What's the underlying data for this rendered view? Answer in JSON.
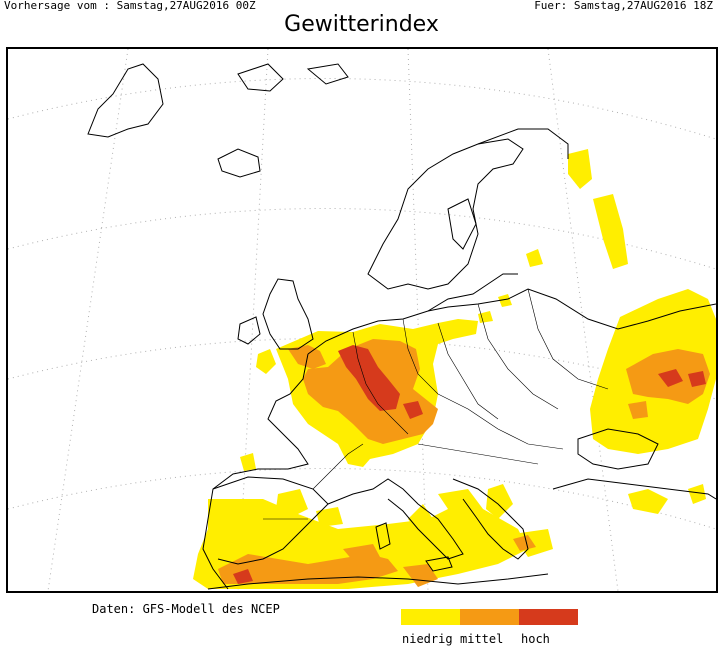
{
  "header": {
    "forecast_run": "Vorhersage vom : Samstag,27AUG2016 00Z",
    "valid_time": "Fuer: Samstag,27AUG2016 18Z"
  },
  "title": "Gewitterindex",
  "source": "Daten: GFS-Modell des NCEP",
  "legend": {
    "items": [
      {
        "label": "niedrig",
        "color": "#ffee00"
      },
      {
        "label": "mittel",
        "color": "#f59a14"
      },
      {
        "label": "hoch",
        "color": "#d63a1c"
      }
    ]
  },
  "colors": {
    "low": "#ffee00",
    "medium": "#f59a14",
    "high": "#d63a1c",
    "coastline": "#000000",
    "graticule": "#b0b0b0"
  }
}
